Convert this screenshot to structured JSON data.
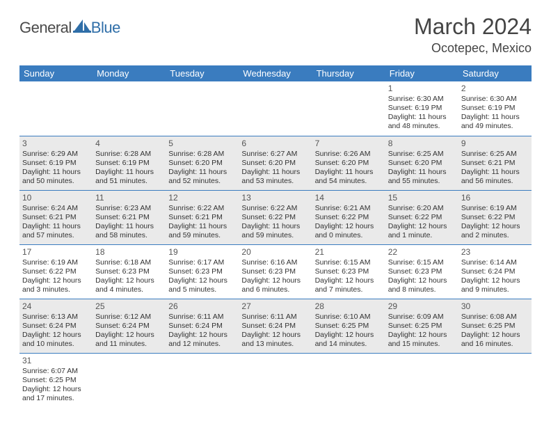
{
  "logo": {
    "text1": "General",
    "text2": "Blue"
  },
  "title": "March 2024",
  "location": "Ocotepec, Mexico",
  "colors": {
    "header_bg": "#3a7cbf",
    "header_fg": "#ffffff",
    "row_border": "#3a7cbf",
    "shade_bg": "#eaeaea",
    "logo_blue": "#2f6ea8",
    "logo_gray": "#4a4a4a"
  },
  "weekdays": [
    "Sunday",
    "Monday",
    "Tuesday",
    "Wednesday",
    "Thursday",
    "Friday",
    "Saturday"
  ],
  "weeks": [
    [
      null,
      null,
      null,
      null,
      null,
      {
        "n": "1",
        "sr": "Sunrise: 6:30 AM",
        "ss": "Sunset: 6:19 PM",
        "d1": "Daylight: 11 hours",
        "d2": "and 48 minutes."
      },
      {
        "n": "2",
        "sr": "Sunrise: 6:30 AM",
        "ss": "Sunset: 6:19 PM",
        "d1": "Daylight: 11 hours",
        "d2": "and 49 minutes."
      }
    ],
    [
      {
        "n": "3",
        "sr": "Sunrise: 6:29 AM",
        "ss": "Sunset: 6:19 PM",
        "d1": "Daylight: 11 hours",
        "d2": "and 50 minutes."
      },
      {
        "n": "4",
        "sr": "Sunrise: 6:28 AM",
        "ss": "Sunset: 6:19 PM",
        "d1": "Daylight: 11 hours",
        "d2": "and 51 minutes."
      },
      {
        "n": "5",
        "sr": "Sunrise: 6:28 AM",
        "ss": "Sunset: 6:20 PM",
        "d1": "Daylight: 11 hours",
        "d2": "and 52 minutes."
      },
      {
        "n": "6",
        "sr": "Sunrise: 6:27 AM",
        "ss": "Sunset: 6:20 PM",
        "d1": "Daylight: 11 hours",
        "d2": "and 53 minutes."
      },
      {
        "n": "7",
        "sr": "Sunrise: 6:26 AM",
        "ss": "Sunset: 6:20 PM",
        "d1": "Daylight: 11 hours",
        "d2": "and 54 minutes."
      },
      {
        "n": "8",
        "sr": "Sunrise: 6:25 AM",
        "ss": "Sunset: 6:20 PM",
        "d1": "Daylight: 11 hours",
        "d2": "and 55 minutes."
      },
      {
        "n": "9",
        "sr": "Sunrise: 6:25 AM",
        "ss": "Sunset: 6:21 PM",
        "d1": "Daylight: 11 hours",
        "d2": "and 56 minutes."
      }
    ],
    [
      {
        "n": "10",
        "sr": "Sunrise: 6:24 AM",
        "ss": "Sunset: 6:21 PM",
        "d1": "Daylight: 11 hours",
        "d2": "and 57 minutes."
      },
      {
        "n": "11",
        "sr": "Sunrise: 6:23 AM",
        "ss": "Sunset: 6:21 PM",
        "d1": "Daylight: 11 hours",
        "d2": "and 58 minutes."
      },
      {
        "n": "12",
        "sr": "Sunrise: 6:22 AM",
        "ss": "Sunset: 6:21 PM",
        "d1": "Daylight: 11 hours",
        "d2": "and 59 minutes."
      },
      {
        "n": "13",
        "sr": "Sunrise: 6:22 AM",
        "ss": "Sunset: 6:22 PM",
        "d1": "Daylight: 11 hours",
        "d2": "and 59 minutes."
      },
      {
        "n": "14",
        "sr": "Sunrise: 6:21 AM",
        "ss": "Sunset: 6:22 PM",
        "d1": "Daylight: 12 hours",
        "d2": "and 0 minutes."
      },
      {
        "n": "15",
        "sr": "Sunrise: 6:20 AM",
        "ss": "Sunset: 6:22 PM",
        "d1": "Daylight: 12 hours",
        "d2": "and 1 minute."
      },
      {
        "n": "16",
        "sr": "Sunrise: 6:19 AM",
        "ss": "Sunset: 6:22 PM",
        "d1": "Daylight: 12 hours",
        "d2": "and 2 minutes."
      }
    ],
    [
      {
        "n": "17",
        "sr": "Sunrise: 6:19 AM",
        "ss": "Sunset: 6:22 PM",
        "d1": "Daylight: 12 hours",
        "d2": "and 3 minutes."
      },
      {
        "n": "18",
        "sr": "Sunrise: 6:18 AM",
        "ss": "Sunset: 6:23 PM",
        "d1": "Daylight: 12 hours",
        "d2": "and 4 minutes."
      },
      {
        "n": "19",
        "sr": "Sunrise: 6:17 AM",
        "ss": "Sunset: 6:23 PM",
        "d1": "Daylight: 12 hours",
        "d2": "and 5 minutes."
      },
      {
        "n": "20",
        "sr": "Sunrise: 6:16 AM",
        "ss": "Sunset: 6:23 PM",
        "d1": "Daylight: 12 hours",
        "d2": "and 6 minutes."
      },
      {
        "n": "21",
        "sr": "Sunrise: 6:15 AM",
        "ss": "Sunset: 6:23 PM",
        "d1": "Daylight: 12 hours",
        "d2": "and 7 minutes."
      },
      {
        "n": "22",
        "sr": "Sunrise: 6:15 AM",
        "ss": "Sunset: 6:23 PM",
        "d1": "Daylight: 12 hours",
        "d2": "and 8 minutes."
      },
      {
        "n": "23",
        "sr": "Sunrise: 6:14 AM",
        "ss": "Sunset: 6:24 PM",
        "d1": "Daylight: 12 hours",
        "d2": "and 9 minutes."
      }
    ],
    [
      {
        "n": "24",
        "sr": "Sunrise: 6:13 AM",
        "ss": "Sunset: 6:24 PM",
        "d1": "Daylight: 12 hours",
        "d2": "and 10 minutes."
      },
      {
        "n": "25",
        "sr": "Sunrise: 6:12 AM",
        "ss": "Sunset: 6:24 PM",
        "d1": "Daylight: 12 hours",
        "d2": "and 11 minutes."
      },
      {
        "n": "26",
        "sr": "Sunrise: 6:11 AM",
        "ss": "Sunset: 6:24 PM",
        "d1": "Daylight: 12 hours",
        "d2": "and 12 minutes."
      },
      {
        "n": "27",
        "sr": "Sunrise: 6:11 AM",
        "ss": "Sunset: 6:24 PM",
        "d1": "Daylight: 12 hours",
        "d2": "and 13 minutes."
      },
      {
        "n": "28",
        "sr": "Sunrise: 6:10 AM",
        "ss": "Sunset: 6:25 PM",
        "d1": "Daylight: 12 hours",
        "d2": "and 14 minutes."
      },
      {
        "n": "29",
        "sr": "Sunrise: 6:09 AM",
        "ss": "Sunset: 6:25 PM",
        "d1": "Daylight: 12 hours",
        "d2": "and 15 minutes."
      },
      {
        "n": "30",
        "sr": "Sunrise: 6:08 AM",
        "ss": "Sunset: 6:25 PM",
        "d1": "Daylight: 12 hours",
        "d2": "and 16 minutes."
      }
    ],
    [
      {
        "n": "31",
        "sr": "Sunrise: 6:07 AM",
        "ss": "Sunset: 6:25 PM",
        "d1": "Daylight: 12 hours",
        "d2": "and 17 minutes."
      },
      null,
      null,
      null,
      null,
      null,
      null
    ]
  ]
}
